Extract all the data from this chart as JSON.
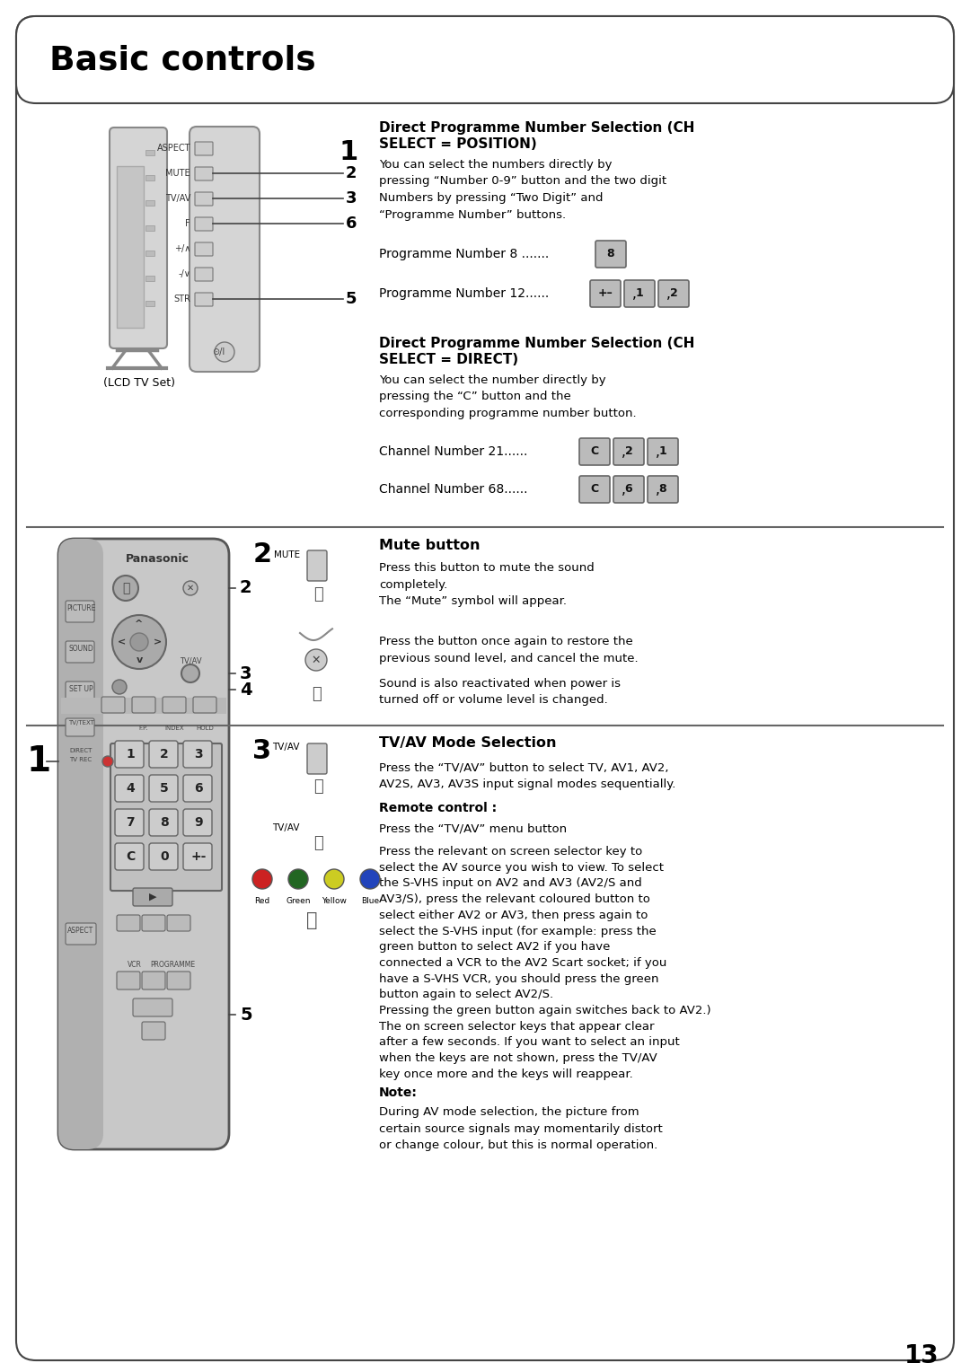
{
  "title": "Basic controls",
  "page_number": "13",
  "bg_color": "#ffffff",
  "section1_heading_line1": "Direct Programme Number Selection (CH",
  "section1_heading_line2": "SELECT = POSITION)",
  "section1_body": "You can select the numbers directly by\npressing “Number 0-9” button and the two digit\nNumbers by pressing “Two Digit” and\n“Programme Number” buttons.",
  "prog8_label": "Programme Number 8 .......",
  "prog8_buttons": [
    "8"
  ],
  "prog12_label": "Programme Number 12......",
  "prog12_buttons": [
    "+–",
    "1",
    "2"
  ],
  "section2_heading_line1": "Direct Programme Number Selection (CH",
  "section2_heading_line2": "SELECT = DIRECT)",
  "section2_body": "You can select the number directly by\npressing the “C” button and the\ncorresponding programme number button.",
  "ch21_label": "Channel Number 21......",
  "ch21_buttons": [
    "C",
    "2",
    "1"
  ],
  "ch68_label": "Channel Number 68......",
  "ch68_buttons": [
    "C",
    "6",
    "8"
  ],
  "section3_heading": "Mute button",
  "section3_body1": "Press this button to mute the sound\ncompletely.\nThe “Mute” symbol will appear.",
  "section3_body2": "Press the button once again to restore the\nprevious sound level, and cancel the mute.",
  "section3_body3": "Sound is also reactivated when power is\nturned off or volume level is changed.",
  "section4_heading": "TV/AV Mode Selection",
  "section4_body1": "Press the “TV/AV” button to select TV, AV1, AV2,\nAV2S, AV3, AV3S input signal modes sequentially.",
  "section4_subheading": "Remote control :",
  "section4_body2": "Press the “TV/AV” menu button",
  "section4_body3": "Press the relevant on screen selector key to\nselect the AV source you wish to view. To select\nthe S-VHS input on AV2 and AV3 (AV2/S and\nAV3/S), press the relevant coloured button to\nselect either AV2 or AV3, then press again to\nselect the S-VHS input (for example: press the\ngreen button to select AV2 if you have\nconnected a VCR to the AV2 Scart socket; if you\nhave a S-VHS VCR, you should press the green\nbutton again to select AV2/S.\nPressing the green button again switches back to AV2.)\nThe on screen selector keys that appear clear\nafter a few seconds. If you want to select an input\nwhen the keys are not shown, press the TV/AV\nkey once more and the keys will reappear.",
  "note_heading": "Note:",
  "note_body": "During AV mode selection, the picture from\ncertain source signals may momentarily distort\nor change colour, but this is normal operation.",
  "divider_color": "#555555",
  "button_bg": "#aaaaaa",
  "button_text_color": "#000000",
  "text_color": "#000000",
  "label_color": "#000000",
  "remote_color": "#d0d0d0",
  "remote_border": "#555555"
}
